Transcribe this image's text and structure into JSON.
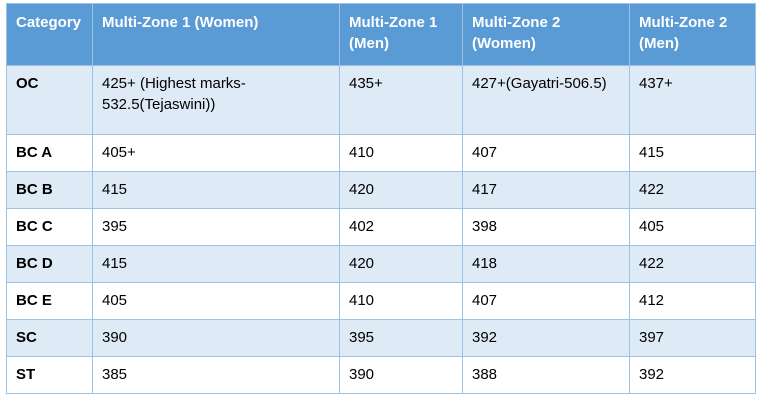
{
  "table": {
    "name": "category-cutoff-marks-table",
    "columns": [
      "Category",
      "Multi-Zone 1 (Women)",
      "Multi-Zone 1 (Men)",
      "Multi-Zone 2 (Women)",
      "Multi-Zone 2 (Men)"
    ],
    "rows": [
      {
        "category": "OC",
        "values": [
          "425+ (Highest marks-532.5(Tejaswini))",
          "435+",
          "427+(Gayatri-506.5)",
          "437+"
        ]
      },
      {
        "category": "BC A",
        "values": [
          "405+",
          "410",
          "407",
          "415"
        ]
      },
      {
        "category": "BC B",
        "values": [
          "415",
          "420",
          "417",
          "422"
        ]
      },
      {
        "category": "BC C",
        "values": [
          "395",
          "402",
          "398",
          "405"
        ]
      },
      {
        "category": "BC D",
        "values": [
          "415",
          "420",
          "418",
          "422"
        ]
      },
      {
        "category": "BC E",
        "values": [
          "405",
          "410",
          "407",
          "412"
        ]
      },
      {
        "category": "SC",
        "values": [
          "390",
          "395",
          "392",
          "397"
        ]
      },
      {
        "category": "ST",
        "values": [
          "385",
          "390",
          "388",
          "392"
        ]
      }
    ],
    "colors": {
      "header_bg": "#5B9BD5",
      "header_text": "#FFFFFF",
      "banded_row_bg": "#DEEAF6",
      "plain_row_bg": "#FFFFFF",
      "border": "#9CC3E5",
      "body_text": "#000000"
    }
  }
}
